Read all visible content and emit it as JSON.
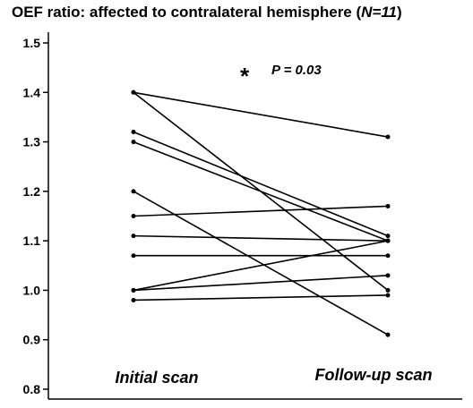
{
  "chart_data": {
    "type": "line",
    "title_prefix": "OEF ratio: affected to contralateral hemisphere (",
    "title_n": "N=11",
    "title_suffix": ")",
    "categories": [
      "Initial scan",
      "Follow-up scan"
    ],
    "annotation_star": "*",
    "annotation_text": "P = 0.03",
    "ylim": [
      0.8,
      1.5
    ],
    "yticks": [
      "0.8",
      "0.9",
      "1.0",
      "1.1",
      "1.2",
      "1.3",
      "1.4",
      "1.5"
    ],
    "ytick_values": [
      0.8,
      0.9,
      1.0,
      1.1,
      1.2,
      1.3,
      1.4,
      1.5
    ],
    "grid": false,
    "line_color": "#000000",
    "series": [
      {
        "values": [
          1.4,
          1.31
        ]
      },
      {
        "values": [
          1.4,
          1.0
        ]
      },
      {
        "values": [
          1.32,
          1.11
        ]
      },
      {
        "values": [
          1.3,
          1.1
        ]
      },
      {
        "values": [
          1.2,
          0.91
        ]
      },
      {
        "values": [
          1.15,
          1.17
        ]
      },
      {
        "values": [
          1.11,
          1.1
        ]
      },
      {
        "values": [
          1.07,
          1.07
        ]
      },
      {
        "values": [
          1.0,
          1.1
        ]
      },
      {
        "values": [
          1.0,
          1.03
        ]
      },
      {
        "values": [
          0.98,
          0.99
        ]
      }
    ]
  }
}
